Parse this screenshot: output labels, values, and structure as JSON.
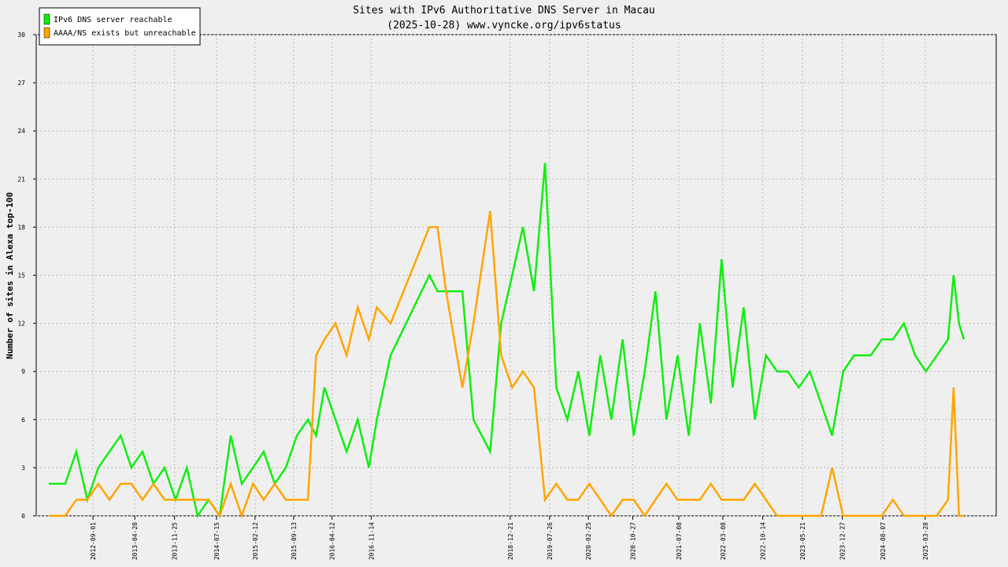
{
  "chart_data": {
    "type": "line",
    "title": "Sites with IPv6 Authoritative DNS Server in Macau",
    "subtitle": "(2025-10-28) www.vyncke.org/ipv6status",
    "y_label": "Number of sites in Alexa top-100",
    "x": [
      "2012-01-01",
      "2012-04-01",
      "2012-06-01",
      "2012-08-01",
      "2012-10-01",
      "2012-12-01",
      "2013-02-01",
      "2013-04-01",
      "2013-06-01",
      "2013-08-01",
      "2013-10-01",
      "2013-12-01",
      "2014-02-01",
      "2014-04-01",
      "2014-06-01",
      "2014-08-01",
      "2014-10-01",
      "2014-12-01",
      "2015-02-01",
      "2015-04-01",
      "2015-06-01",
      "2015-08-01",
      "2015-10-01",
      "2015-12-01",
      "2016-01-15",
      "2016-03-01",
      "2016-05-01",
      "2016-07-01",
      "2016-09-01",
      "2016-11-01",
      "2016-12-15",
      "2017-03-01",
      "2017-10-01",
      "2017-11-15",
      "2018-01-01",
      "2018-04-01",
      "2018-06-01",
      "2018-09-01",
      "2018-11-01",
      "2019-01-01",
      "2019-03-01",
      "2019-05-01",
      "2019-07-01",
      "2019-09-01",
      "2019-11-01",
      "2020-01-01",
      "2020-03-01",
      "2020-05-01",
      "2020-07-01",
      "2020-09-01",
      "2020-11-01",
      "2021-01-01",
      "2021-03-01",
      "2021-05-01",
      "2021-07-01",
      "2021-09-01",
      "2021-11-01",
      "2022-01-01",
      "2022-03-01",
      "2022-05-01",
      "2022-07-01",
      "2022-09-01",
      "2022-11-01",
      "2023-01-01",
      "2023-03-01",
      "2023-05-01",
      "2023-07-01",
      "2023-09-01",
      "2023-11-01",
      "2024-01-01",
      "2024-03-01",
      "2024-06-01",
      "2024-08-01",
      "2024-10-01",
      "2024-12-01",
      "2025-02-01",
      "2025-04-01",
      "2025-06-01",
      "2025-08-01",
      "2025-09-01",
      "2025-10-01",
      "2025-10-28"
    ],
    "series": [
      {
        "name": "IPv6 DNS server reachable",
        "color": "#11ee11",
        "values": [
          2,
          2,
          4,
          1,
          3,
          4,
          5,
          3,
          4,
          2,
          3,
          1,
          3,
          0,
          1,
          0,
          5,
          2,
          3,
          4,
          2,
          3,
          5,
          6,
          5,
          8,
          6,
          4,
          6,
          3,
          6,
          10,
          15,
          14,
          14,
          14,
          6,
          4,
          12,
          15,
          18,
          14,
          22,
          8,
          6,
          9,
          5,
          10,
          6,
          11,
          5,
          9,
          14,
          6,
          10,
          5,
          12,
          7,
          16,
          8,
          13,
          6,
          10,
          9,
          9,
          8,
          9,
          7,
          5,
          9,
          10,
          10,
          11,
          11,
          12,
          10,
          9,
          10,
          11,
          15,
          12,
          11
        ]
      },
      {
        "name": "AAAA/NS exists but unreachable",
        "color": "#ffa500",
        "values": [
          0,
          0,
          1,
          1,
          2,
          1,
          2,
          2,
          1,
          2,
          1,
          1,
          1,
          1,
          1,
          0,
          2,
          0,
          2,
          1,
          2,
          1,
          1,
          1,
          10,
          11,
          12,
          10,
          13,
          11,
          13,
          12,
          18,
          18,
          14,
          8,
          12,
          19,
          10,
          8,
          9,
          8,
          1,
          2,
          1,
          1,
          2,
          1,
          0,
          1,
          1,
          0,
          1,
          2,
          1,
          1,
          1,
          2,
          1,
          1,
          1,
          2,
          1,
          0,
          0,
          0,
          0,
          0,
          3,
          0,
          0,
          0,
          0,
          1,
          0,
          0,
          0,
          0,
          1,
          8,
          0,
          0
        ]
      }
    ],
    "xlim": [
      "2011-10-24",
      "2026-04-24"
    ],
    "xticks": [
      "2012-09-01",
      "2013-04-20",
      "2013-11-25",
      "2014-07-15",
      "2015-02-12",
      "2015-09-13",
      "2016-04-12",
      "2016-11-14",
      "2018-12-21",
      "2019-07-26",
      "2020-02-25",
      "2020-10-27",
      "2021-07-08",
      "2022-03-08",
      "2022-10-14",
      "2023-05-21",
      "2023-12-27",
      "2024-08-07",
      "2025-03-28"
    ],
    "ylim": [
      0,
      30
    ],
    "yticks": [
      0,
      3,
      6,
      9,
      12,
      15,
      18,
      21,
      24,
      27,
      30
    ],
    "grid": true,
    "legend": "top-left"
  }
}
